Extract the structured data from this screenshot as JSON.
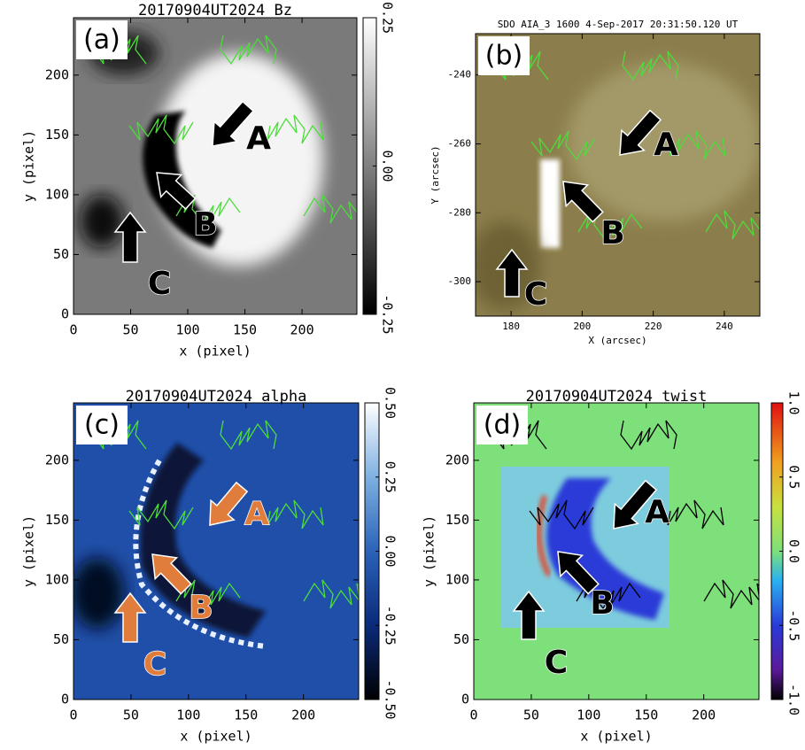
{
  "chart_data": [
    {
      "type": "image",
      "title": "20170904UT2024 Bz",
      "panel_label": "(a)",
      "xlabel": "x (pixel)",
      "ylabel": "y (pixel)",
      "xlim": [
        0,
        248
      ],
      "ylim": [
        0,
        248
      ],
      "xticks": [
        0,
        50,
        100,
        150,
        200
      ],
      "yticks": [
        0,
        50,
        100,
        150,
        200
      ],
      "colormap": "gray",
      "clim": [
        -0.25,
        0.25
      ],
      "cticks": [
        -0.25,
        {
          "value": 0,
          "label": "0.00"
        },
        0.25
      ],
      "annotations": [
        "A",
        "B",
        "C"
      ],
      "arrow_color": "#000000",
      "contour_color": "#4cdc3c"
    },
    {
      "type": "image",
      "title": "SDO AIA_3 1600   4-Sep-2017 20:31:50.120 UT",
      "panel_label": "(b)",
      "xlabel": "X (arcsec)",
      "ylabel": "Y (arcsec)",
      "xlim": [
        170,
        250
      ],
      "ylim": [
        -310,
        -228
      ],
      "xticks": [
        180,
        200,
        220,
        240
      ],
      "yticks": [
        -300,
        -280,
        -260,
        -240
      ],
      "colormap": "olive",
      "annotations": [
        "A",
        "B",
        "C"
      ],
      "arrow_color": "#000000",
      "contour_color": "#4cdc3c"
    },
    {
      "type": "image",
      "title": "20170904UT2024 alpha",
      "panel_label": "(c)",
      "xlabel": "x (pixel)",
      "ylabel": "y (pixel)",
      "xlim": [
        0,
        248
      ],
      "ylim": [
        0,
        248
      ],
      "xticks": [
        0,
        50,
        100,
        150,
        200
      ],
      "yticks": [
        0,
        50,
        100,
        150,
        200
      ],
      "colormap": "blue",
      "clim": [
        -0.5,
        0.5
      ],
      "cticks": [
        {
          "value": -0.5,
          "label": "-0.50"
        },
        -0.25,
        {
          "value": 0,
          "label": "0.00"
        },
        0.25,
        {
          "value": 0.5,
          "label": "0.50"
        }
      ],
      "annotations": [
        "A",
        "B",
        "C"
      ],
      "arrow_color": "#e07c3c",
      "contour_color": "#4cdc3c"
    },
    {
      "type": "image",
      "title": "20170904UT2024 twist",
      "panel_label": "(d)",
      "xlabel": "x (pixel)",
      "ylabel": "y (pixel)",
      "xlim": [
        0,
        248
      ],
      "ylim": [
        0,
        248
      ],
      "xticks": [
        0,
        50,
        100,
        150,
        200
      ],
      "yticks": [
        0,
        50,
        100,
        150,
        200
      ],
      "colormap": "jet",
      "clim": [
        -1,
        1
      ],
      "cticks": [
        {
          "value": -1,
          "label": "-1.0"
        },
        -0.5,
        {
          "value": 0,
          "label": "0.0"
        },
        0.5,
        {
          "value": 1,
          "label": "1.0"
        }
      ],
      "annotations": [
        "A",
        "B",
        "C"
      ],
      "arrow_color": "#000000",
      "contour_color": "#000000"
    }
  ]
}
